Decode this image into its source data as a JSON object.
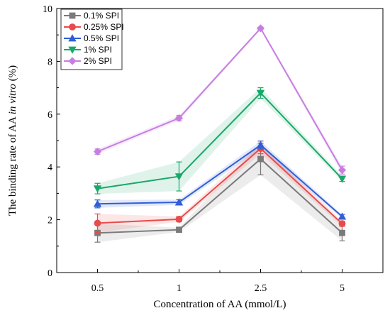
{
  "chart_data": {
    "type": "line",
    "categories": [
      "0.5",
      "1",
      "2.5",
      "5"
    ],
    "xlabel": "Concentration of AA (mmol/L)",
    "ylabel_prefix": "The binding rate of AA ",
    "ylabel_italic": "in vitro",
    "ylabel_suffix": " (%)",
    "ylim": [
      0,
      10
    ],
    "yticks": [
      "0",
      "2",
      "4",
      "6",
      "8",
      "10"
    ],
    "legend_position": "top-left",
    "grid": false,
    "series": [
      {
        "name": "0.1% SPI",
        "color": "#7a7a7a",
        "marker": "square",
        "values": [
          1.5,
          1.62,
          4.3,
          1.5
        ],
        "errors": [
          0.35,
          0.08,
          0.6,
          0.3
        ]
      },
      {
        "name": "0.25% SPI",
        "color": "#e84b4b",
        "marker": "circle",
        "values": [
          1.87,
          2.02,
          4.7,
          1.85
        ],
        "errors": [
          0.35,
          0.1,
          0.2,
          0.1
        ]
      },
      {
        "name": "0.5% SPI",
        "color": "#2f5fd6",
        "marker": "triangle-up",
        "values": [
          2.6,
          2.66,
          4.83,
          2.12
        ],
        "errors": [
          0.15,
          0.1,
          0.15,
          0.08
        ]
      },
      {
        "name": "1% SPI",
        "color": "#1aa86a",
        "marker": "triangle-down",
        "values": [
          3.18,
          3.64,
          6.8,
          3.55
        ],
        "errors": [
          0.2,
          0.55,
          0.2,
          0.1
        ]
      },
      {
        "name": "2% SPI",
        "color": "#c77ee0",
        "marker": "diamond",
        "values": [
          4.58,
          5.85,
          9.25,
          3.88
        ],
        "errors": [
          0.1,
          0.1,
          0.05,
          0.15
        ]
      }
    ]
  }
}
